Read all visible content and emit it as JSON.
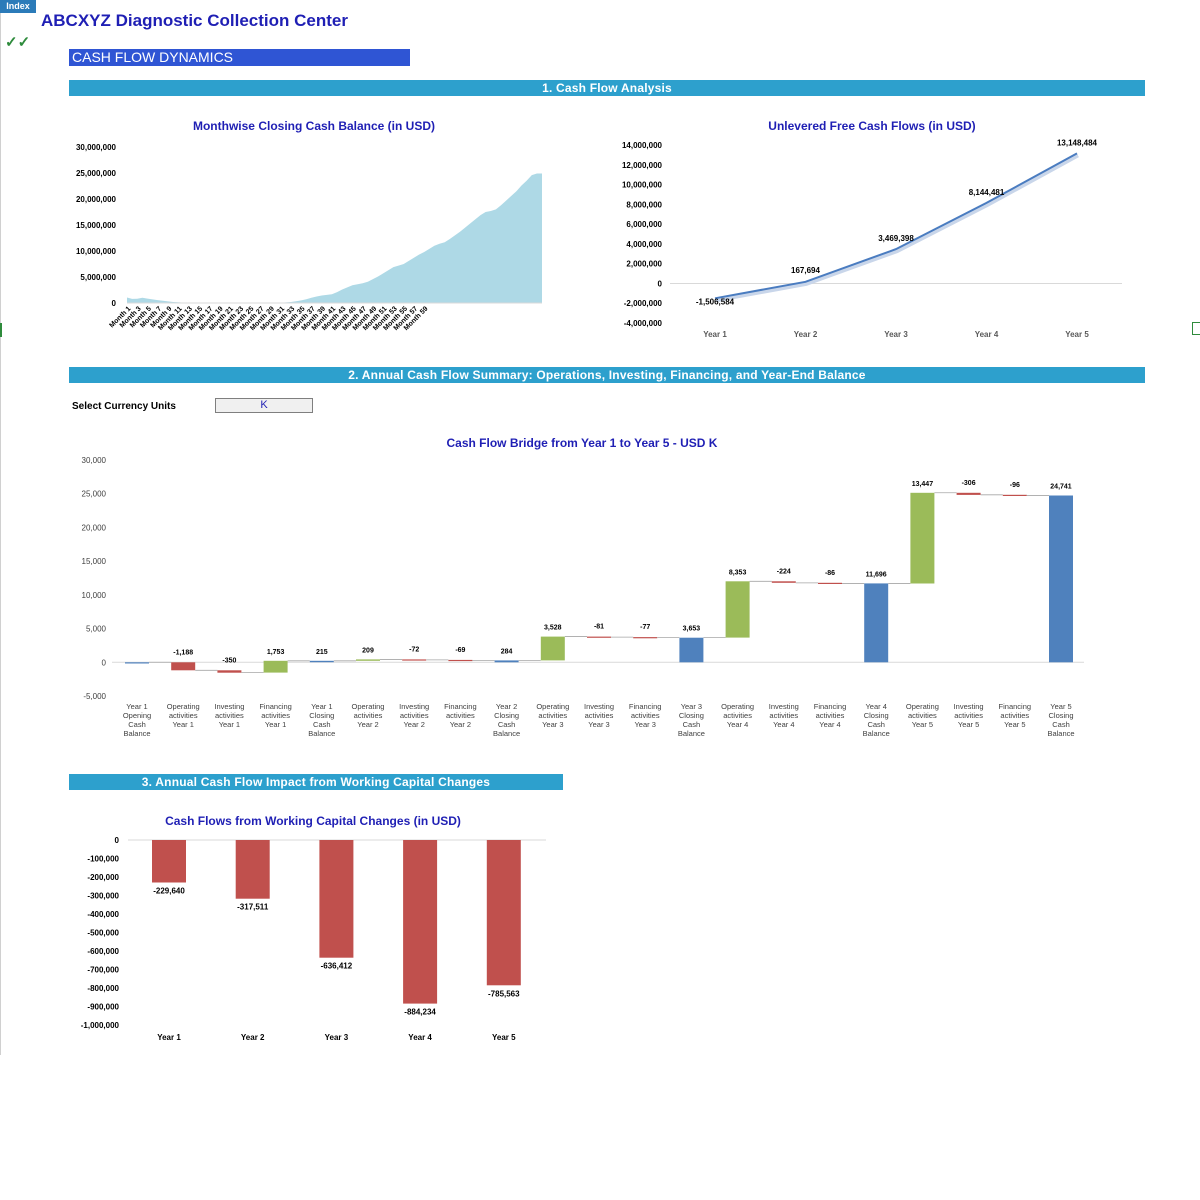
{
  "index_tab": "Index",
  "company": "ABCXYZ Diagnostic Collection Center",
  "checkmarks": "✓✓",
  "page_title": "CASH FLOW DYNAMICS",
  "sections": {
    "s1": "1. Cash Flow Analysis",
    "s2": "2. Annual Cash Flow Summary: Operations, Investing, Financing, and Year-End Balance",
    "s3": "3. Annual Cash Flow Impact from Working Capital Changes"
  },
  "currency": {
    "label": "Select Currency Units",
    "value": "K"
  },
  "colors": {
    "title_blue": "#1f1fb4",
    "section_teal": "#2da0cd",
    "area_fill": "#aed9e6",
    "line_blue": "#4a7cc0",
    "bar_green": "#9bbb59",
    "bar_red": "#c0504d",
    "bar_blue": "#4f81bd"
  },
  "chart_data": [
    {
      "type": "area",
      "title": "Monthwise Closing Cash Balance (in USD)",
      "ylim": [
        0,
        30000000
      ],
      "yticks": [
        "0",
        "5,000,000",
        "10,000,000",
        "15,000,000",
        "20,000,000",
        "25,000,000",
        "30,000,000"
      ],
      "x_labels": [
        "Month 1",
        "Month 3",
        "Month 5",
        "Month 7",
        "Month 9",
        "Month 11",
        "Month 13",
        "Month 15",
        "Month 17",
        "Month 19",
        "Month 21",
        "Month 23",
        "Month 25",
        "Month 27",
        "Month 29",
        "Month 31",
        "Month 33",
        "Month 35",
        "Month 37",
        "Month 39",
        "Month 41",
        "Month 43",
        "Month 45",
        "Month 47",
        "Month 49",
        "Month 51",
        "Month 53",
        "Month 55",
        "Month 57",
        "Month 59"
      ],
      "values": [
        1050000,
        780000,
        800000,
        1000000,
        850000,
        700000,
        560000,
        420000,
        300000,
        200000,
        130000,
        80000,
        40000,
        15000,
        5000,
        0,
        0,
        0,
        0,
        0,
        0,
        0,
        0,
        0,
        0,
        0,
        0,
        0,
        5000,
        20000,
        60000,
        120000,
        200000,
        320000,
        500000,
        720000,
        1000000,
        1250000,
        1450000,
        1550000,
        1700000,
        2100000,
        2600000,
        3000000,
        3400000,
        3600000,
        3800000,
        4100000,
        4600000,
        5100000,
        5700000,
        6300000,
        6900000,
        7200000,
        7500000,
        8100000,
        8700000,
        9300000,
        9800000,
        10400000,
        11000000,
        11400000,
        11700000,
        12300000,
        13000000,
        13700000,
        14500000,
        15300000,
        16100000,
        16900000,
        17500000,
        17700000,
        18000000,
        18800000,
        19700000,
        20600000,
        21500000,
        22600000,
        23500000,
        24600000,
        24900000,
        24900000
      ],
      "grid": false,
      "legend": "none"
    },
    {
      "type": "line",
      "title": "Unlevered Free Cash Flows (in USD)",
      "categories": [
        "Year 1",
        "Year 2",
        "Year 3",
        "Year 4",
        "Year 5"
      ],
      "values": [
        -1506584,
        167694,
        3469398,
        8144481,
        13148484
      ],
      "data_labels": [
        "-1,506,584",
        "167,694",
        "3,469,398",
        "8,144,481",
        "13,148,484"
      ],
      "ylim": [
        -4000000,
        14000000
      ],
      "yticks": [
        "-4,000,000",
        "-2,000,000",
        "0",
        "2,000,000",
        "4,000,000",
        "6,000,000",
        "8,000,000",
        "10,000,000",
        "12,000,000",
        "14,000,000"
      ],
      "grid": false,
      "legend": "none"
    },
    {
      "type": "bar",
      "title": "Cash Flow Bridge from Year 1 to Year 5 - USD K",
      "ylim": [
        -5000,
        30000
      ],
      "yticks": [
        "-5,000",
        "0",
        "5,000",
        "10,000",
        "15,000",
        "20,000",
        "25,000",
        "30,000"
      ],
      "categories": [
        [
          "Year 1",
          "Opening",
          "Cash",
          "Balance"
        ],
        [
          "Operating",
          "activities",
          "Year 1"
        ],
        [
          "Investing",
          "activities",
          "Year 1"
        ],
        [
          "Financing",
          "activities",
          "Year 1"
        ],
        [
          "Year 1",
          "Closing",
          "Cash",
          "Balance"
        ],
        [
          "Operating",
          "activities",
          "Year 2"
        ],
        [
          "Investing",
          "activities",
          "Year 2"
        ],
        [
          "Financing",
          "activities",
          "Year 2"
        ],
        [
          "Year 2",
          "Closing",
          "Cash",
          "Balance"
        ],
        [
          "Operating",
          "activities",
          "Year 3"
        ],
        [
          "Investing",
          "activities",
          "Year 3"
        ],
        [
          "Financing",
          "activities",
          "Year 3"
        ],
        [
          "Year 3",
          "Closing",
          "Cash",
          "Balance"
        ],
        [
          "Operating",
          "activities",
          "Year 4"
        ],
        [
          "Investing",
          "activities",
          "Year 4"
        ],
        [
          "Financing",
          "activities",
          "Year 4"
        ],
        [
          "Year 4",
          "Closing",
          "Cash",
          "Balance"
        ],
        [
          "Operating",
          "activities",
          "Year 5"
        ],
        [
          "Investing",
          "activities",
          "Year 5"
        ],
        [
          "Financing",
          "activities",
          "Year 5"
        ],
        [
          "Year 5",
          "Closing",
          "Cash",
          "Balance"
        ]
      ],
      "values": [
        0,
        -1188,
        -350,
        1753,
        215,
        209,
        -72,
        -69,
        284,
        3528,
        -81,
        -77,
        3653,
        8353,
        -224,
        -86,
        11696,
        13447,
        -306,
        -96,
        24741
      ],
      "data_labels": [
        "",
        "-1,188",
        "-350",
        "1,753",
        "215",
        "209",
        "-72",
        "-69",
        "284",
        "3,528",
        "-81",
        "-77",
        "3,653",
        "8,353",
        "-224",
        "-86",
        "11,696",
        "13,447",
        "-306",
        "-96",
        "24,741"
      ],
      "kinds": [
        "total",
        "delta",
        "delta",
        "delta",
        "total",
        "delta",
        "delta",
        "delta",
        "total",
        "delta",
        "delta",
        "delta",
        "total",
        "delta",
        "delta",
        "delta",
        "total",
        "delta",
        "delta",
        "delta",
        "total"
      ],
      "grid": false,
      "legend": "none"
    },
    {
      "type": "bar",
      "title": "Cash Flows from Working Capital Changes (in USD)",
      "categories": [
        "Year 1",
        "Year 2",
        "Year 3",
        "Year 4",
        "Year 5"
      ],
      "values": [
        -229640,
        -317511,
        -636412,
        -884234,
        -785563
      ],
      "data_labels": [
        "-229,640",
        "-317,511",
        "-636,412",
        "-884,234",
        "-785,563"
      ],
      "ylim": [
        -1000000,
        0
      ],
      "yticks": [
        "0",
        "-100,000",
        "-200,000",
        "-300,000",
        "-400,000",
        "-500,000",
        "-600,000",
        "-700,000",
        "-800,000",
        "-900,000",
        "-1,000,000"
      ],
      "grid": false,
      "legend": "none"
    }
  ]
}
